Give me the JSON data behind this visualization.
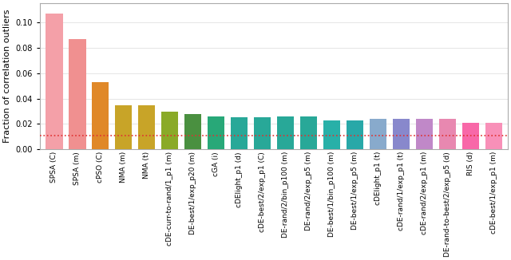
{
  "categories": [
    "SPSA (C)",
    "SPSA (m)",
    "cPSO (C)",
    "NMA (m)",
    "NMA (t)",
    "cDE-curr-to-rand/1_p1 (m)",
    "DE-best/1/exp_p20 (m)",
    "cGA (i)",
    "cDElight_p1 (d)",
    "cDE-best/2/exp_p1 (C)",
    "DE-rand/2/bin_p100 (m)",
    "DE-rand/2/exp_p5 (m)",
    "DE-best/1/bin_p100 (m)",
    "DE-best/1/exp_p5 (m)",
    "cDElight_p1 (t)",
    "cDE-rand/1/exp_p1 (t)",
    "cDE-rand/2/exp_p1 (m)",
    "DE-rand-to-best/2/exp_p5 (d)",
    "RIS (d)",
    "cDE-best/1/exp_p1 (m)"
  ],
  "values": [
    0.107,
    0.087,
    0.053,
    0.035,
    0.035,
    0.03,
    0.028,
    0.026,
    0.025,
    0.025,
    0.026,
    0.026,
    0.023,
    0.023,
    0.024,
    0.024,
    0.024,
    0.024,
    0.021,
    0.021
  ],
  "colors": [
    "#f4a0a8",
    "#f09090",
    "#e08828",
    "#c8a428",
    "#c8a428",
    "#8aaa28",
    "#4a9040",
    "#28a878",
    "#28a898",
    "#28a898",
    "#28a898",
    "#28a898",
    "#28b0a8",
    "#28a8a8",
    "#88aacc",
    "#8888cc",
    "#c088c8",
    "#e888b0",
    "#f868a8",
    "#f890b8"
  ],
  "hline_y": 0.011,
  "hline_color": "#e03030",
  "hline_style": ":",
  "ylabel": "Fraction of correlation outliers",
  "ylim": [
    0.0,
    0.115
  ],
  "yticks": [
    0.0,
    0.02,
    0.04,
    0.06,
    0.08,
    0.1
  ],
  "tick_fontsize": 7,
  "ylabel_fontsize": 8,
  "xlabel_fontsize": 6.5,
  "background_color": "#ffffff",
  "grid_color": "#e0e0e0"
}
